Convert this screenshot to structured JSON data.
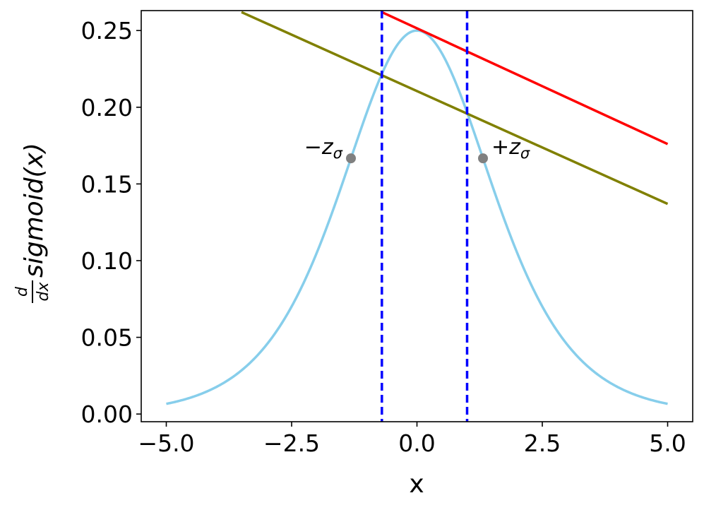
{
  "chart_data": {
    "type": "line",
    "xlabel": "x",
    "ylabel": {
      "frac_num": "d",
      "frac_den": "dx",
      "text": "sigmoid(x)"
    },
    "xlim": [
      -5.5,
      5.5
    ],
    "ylim": [
      -0.005,
      0.263
    ],
    "xticks": [
      -5.0,
      -2.5,
      0.0,
      2.5,
      5.0
    ],
    "xtick_labels": [
      "−5.0",
      "−2.5",
      "0.0",
      "2.5",
      "5.0"
    ],
    "yticks": [
      0.0,
      0.05,
      0.1,
      0.15,
      0.2,
      0.25
    ],
    "ytick_labels": [
      "0.00",
      "0.05",
      "0.10",
      "0.15",
      "0.20",
      "0.25"
    ],
    "curve": {
      "function": "sigmoid_derivative",
      "x_range": [
        -5.0,
        5.0
      ],
      "color": "#87ceeb"
    },
    "tangent_lines": [
      {
        "color": "#ff0000",
        "points": [
          [
            -0.7,
            0.262
          ],
          [
            5.0,
            0.176
          ]
        ]
      },
      {
        "color": "#808000",
        "points": [
          [
            -3.5,
            0.262
          ],
          [
            5.0,
            0.137
          ]
        ]
      }
    ],
    "vertical_lines": [
      {
        "x": -0.7,
        "color": "#0000ff",
        "style": "dashed"
      },
      {
        "x": 1.0,
        "color": "#0000ff",
        "style": "dashed"
      }
    ],
    "points": [
      {
        "x": -1.317,
        "y": 0.1667,
        "color": "#808080",
        "label_sign": "−",
        "label_var": "z",
        "label_sub": "σ",
        "label_side": "left"
      },
      {
        "x": 1.317,
        "y": 0.1667,
        "color": "#808080",
        "label_sign": "+",
        "label_var": "z",
        "label_sub": "σ",
        "label_side": "right"
      }
    ],
    "grid": false,
    "legend": "none"
  }
}
